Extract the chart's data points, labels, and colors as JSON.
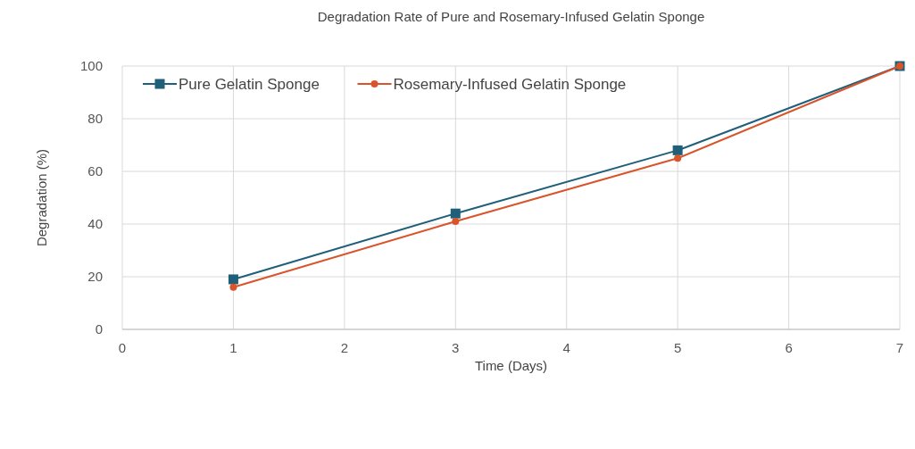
{
  "chart_data": {
    "type": "line",
    "title": "Degradation Rate of Pure and Rosemary-Infused Gelatin Sponge",
    "xlabel": "Time (Days)",
    "ylabel": "Degradation (%)",
    "x": [
      1,
      3,
      5,
      7
    ],
    "series": [
      {
        "name": "Pure Gelatin Sponge",
        "color": "#1f5f7a",
        "values": [
          19,
          44,
          68,
          100
        ],
        "marker": "square"
      },
      {
        "name": "Rosemary-Infused Gelatin Sponge",
        "color": "#d9542a",
        "values": [
          16,
          41,
          65,
          100
        ],
        "marker": "circle"
      }
    ],
    "xlim": [
      0,
      7
    ],
    "xticks": [
      0,
      1,
      2,
      3,
      4,
      5,
      6,
      7
    ],
    "ylim": [
      0,
      100
    ],
    "yticks": [
      0,
      20,
      40,
      60,
      80,
      100
    ],
    "grid": true,
    "legend": "top",
    "line_style": "solid"
  }
}
